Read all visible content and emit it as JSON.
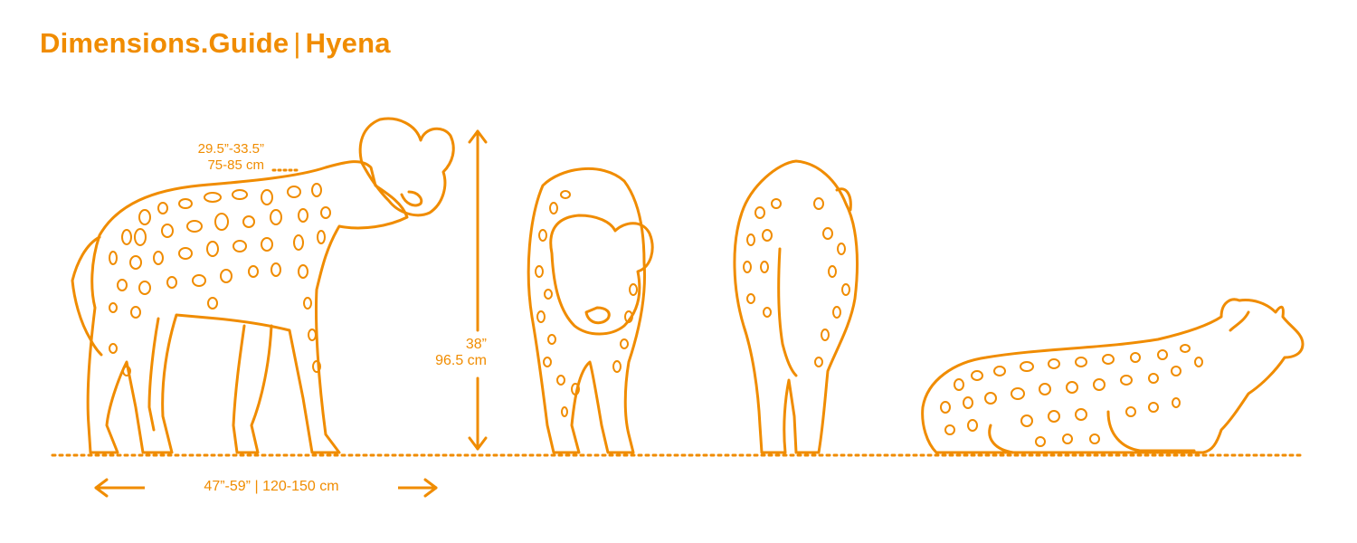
{
  "title": {
    "brand": "Dimensions.Guide",
    "separator": "|",
    "subject": "Hyena"
  },
  "dimensions": {
    "shoulder_height": {
      "imperial": "29.5”-33.5”",
      "metric": "75-85 cm"
    },
    "height": {
      "imperial": "38”",
      "metric": "96.5 cm"
    },
    "length": {
      "imperial": "47”-59”",
      "separator": "|",
      "metric": "120-150 cm"
    }
  },
  "views": [
    "side",
    "front",
    "rear",
    "lying"
  ],
  "colors": {
    "accent": "#F08C00",
    "background": "#FFFFFF"
  }
}
